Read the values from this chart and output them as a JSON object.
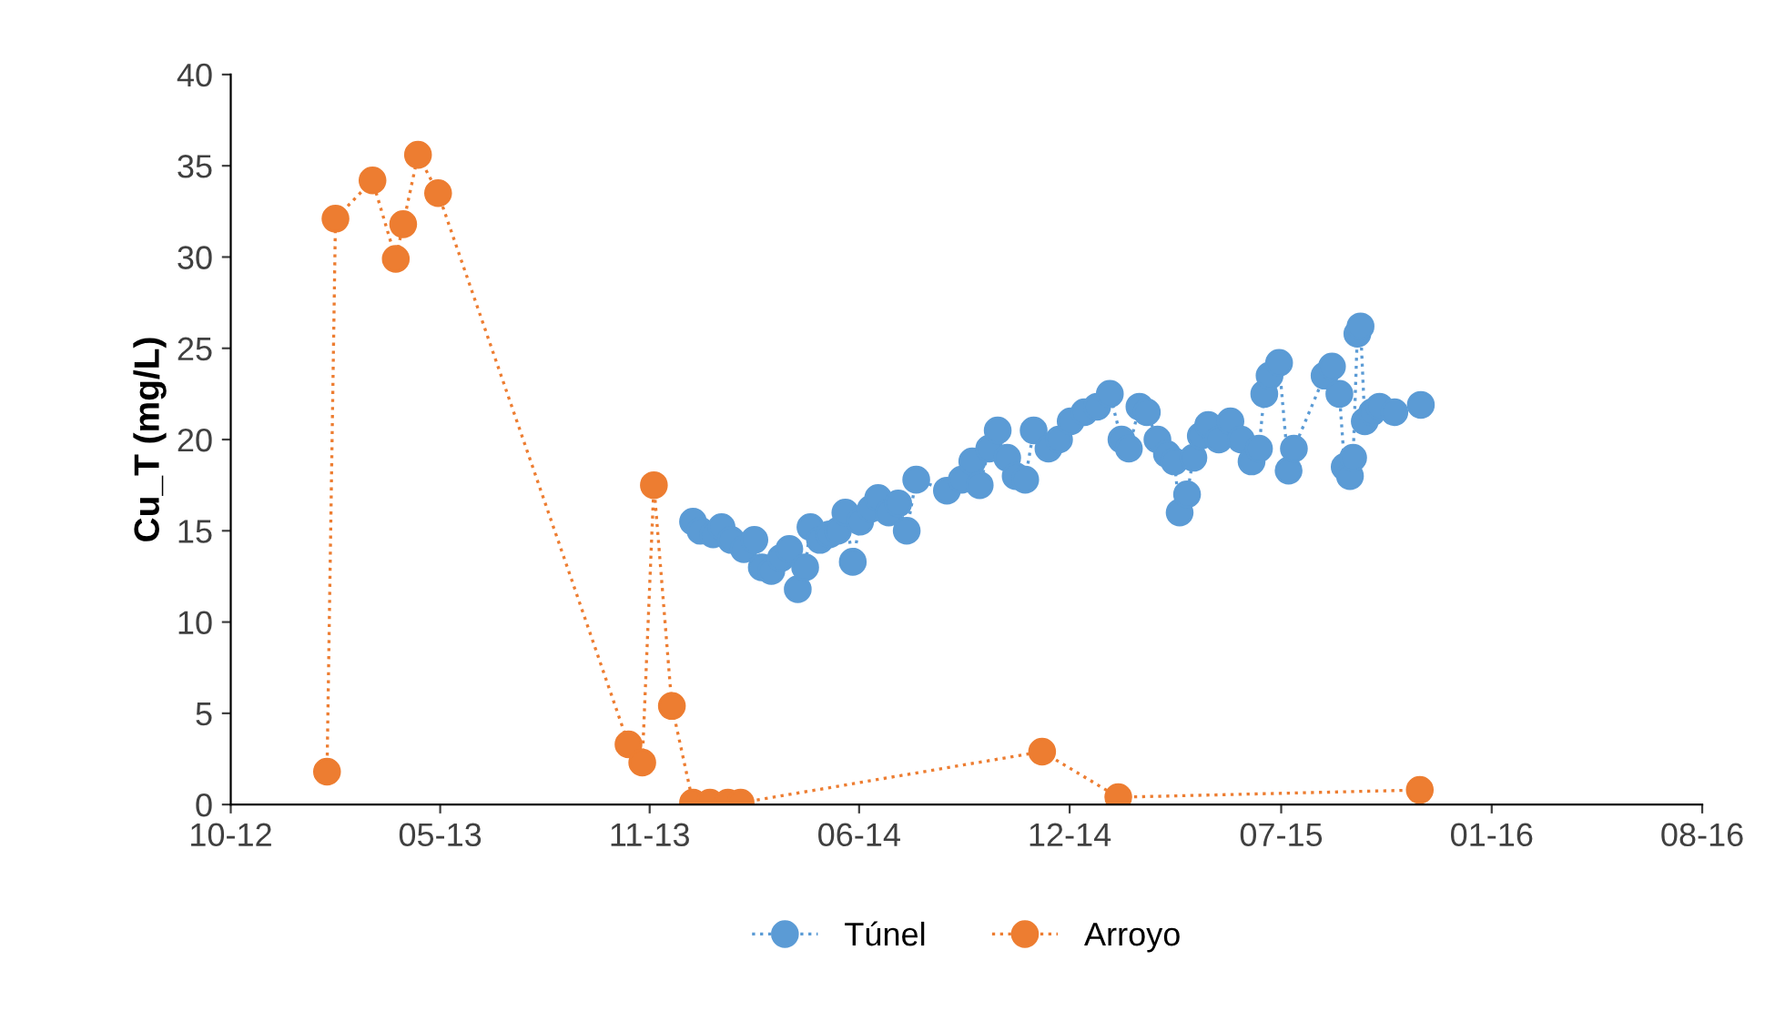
{
  "chart_data": {
    "type": "line",
    "ylabel": "Cu_T (mg/L)",
    "xlim": [
      "2012-10-25",
      "2016-08-16"
    ],
    "xticks": [
      {
        "value": "2012-10-25",
        "label": "10-12"
      },
      {
        "value": "2013-05-11",
        "label": "05-13"
      },
      {
        "value": "2013-11-25",
        "label": "11-13"
      },
      {
        "value": "2014-06-11",
        "label": "06-14"
      },
      {
        "value": "2014-12-27",
        "label": "12-14"
      },
      {
        "value": "2015-07-15",
        "label": "07-15"
      },
      {
        "value": "2016-01-30",
        "label": "01-16"
      },
      {
        "value": "2016-08-16",
        "label": "08-16"
      }
    ],
    "ylim": [
      0,
      40
    ],
    "yticks": [
      0,
      5,
      10,
      15,
      20,
      25,
      30,
      35,
      40
    ],
    "marker": "circle",
    "line_style": "dotted",
    "legend": "bottom",
    "grid": false,
    "series": [
      {
        "name": "Túnel",
        "color": "#5b9bd5",
        "x": [
          "2014-01-05",
          "2014-01-12",
          "2014-01-24",
          "2014-02-01",
          "2014-02-10",
          "2014-02-22",
          "2014-03-04",
          "2014-03-11",
          "2014-03-20",
          "2014-03-29",
          "2014-04-06",
          "2014-04-14",
          "2014-04-21",
          "2014-04-26",
          "2014-05-05",
          "2014-05-14",
          "2014-05-22",
          "2014-05-29",
          "2014-06-05",
          "2014-06-12",
          "2014-06-22",
          "2014-06-29",
          "2014-07-09",
          "2014-07-18",
          "2014-07-26",
          "2014-08-04",
          "2014-09-02",
          "2014-09-16",
          "2014-09-26",
          "2014-10-03",
          "2014-10-12",
          "2014-10-20",
          "2014-10-29",
          "2014-11-06",
          "2014-11-15",
          "2014-11-23",
          "2014-12-07",
          "2014-12-17",
          "2014-12-28",
          "2015-01-10",
          "2015-01-22",
          "2015-02-03",
          "2015-02-14",
          "2015-02-21",
          "2015-03-03",
          "2015-03-10",
          "2015-03-20",
          "2015-03-29",
          "2015-04-05",
          "2015-04-10",
          "2015-04-17",
          "2015-04-23",
          "2015-04-30",
          "2015-05-07",
          "2015-05-17",
          "2015-05-28",
          "2015-06-07",
          "2015-06-17",
          "2015-06-24",
          "2015-06-29",
          "2015-07-04",
          "2015-07-13",
          "2015-07-22",
          "2015-07-27",
          "2015-08-25",
          "2015-09-01",
          "2015-09-08",
          "2015-09-13",
          "2015-09-18",
          "2015-09-21",
          "2015-09-25",
          "2015-09-28",
          "2015-10-02",
          "2015-10-09",
          "2015-10-16",
          "2015-10-30",
          "2015-11-24"
        ],
        "values": [
          15.5,
          15.0,
          14.8,
          15.2,
          14.5,
          14.0,
          14.5,
          13.0,
          12.8,
          13.5,
          14.0,
          11.8,
          13.0,
          15.2,
          14.5,
          14.8,
          15.0,
          16.0,
          13.3,
          15.5,
          16.2,
          16.8,
          16.0,
          16.5,
          15.0,
          17.8,
          17.2,
          17.8,
          18.8,
          17.5,
          19.5,
          20.5,
          19.0,
          18.0,
          17.8,
          20.5,
          19.5,
          20.0,
          21.0,
          21.5,
          21.8,
          22.5,
          20.0,
          19.5,
          21.8,
          21.5,
          20.0,
          19.2,
          18.8,
          16.0,
          17.0,
          19.0,
          20.2,
          20.8,
          20.0,
          21.0,
          20.0,
          18.8,
          19.5,
          22.5,
          23.5,
          24.2,
          18.3,
          19.5,
          23.5,
          24.0,
          22.5,
          18.5,
          18.0,
          19.0,
          25.8,
          26.2,
          21.0,
          21.5,
          21.8,
          21.5,
          21.9
        ]
      },
      {
        "name": "Arroyo",
        "color": "#ed7d31",
        "x": [
          "2013-01-24",
          "2013-02-01",
          "2013-03-08",
          "2013-03-30",
          "2013-04-06",
          "2013-04-20",
          "2013-05-09",
          "2013-11-05",
          "2013-11-18",
          "2013-11-29",
          "2013-12-16",
          "2014-01-05",
          "2014-01-21",
          "2014-02-07",
          "2014-02-19",
          "2014-12-01",
          "2015-02-11",
          "2015-11-23"
        ],
        "values": [
          1.8,
          32.1,
          34.2,
          29.9,
          31.8,
          35.6,
          33.5,
          3.3,
          2.3,
          17.5,
          5.4,
          0.1,
          0.1,
          0.1,
          0.1,
          2.9,
          0.4,
          0.8
        ]
      }
    ]
  }
}
